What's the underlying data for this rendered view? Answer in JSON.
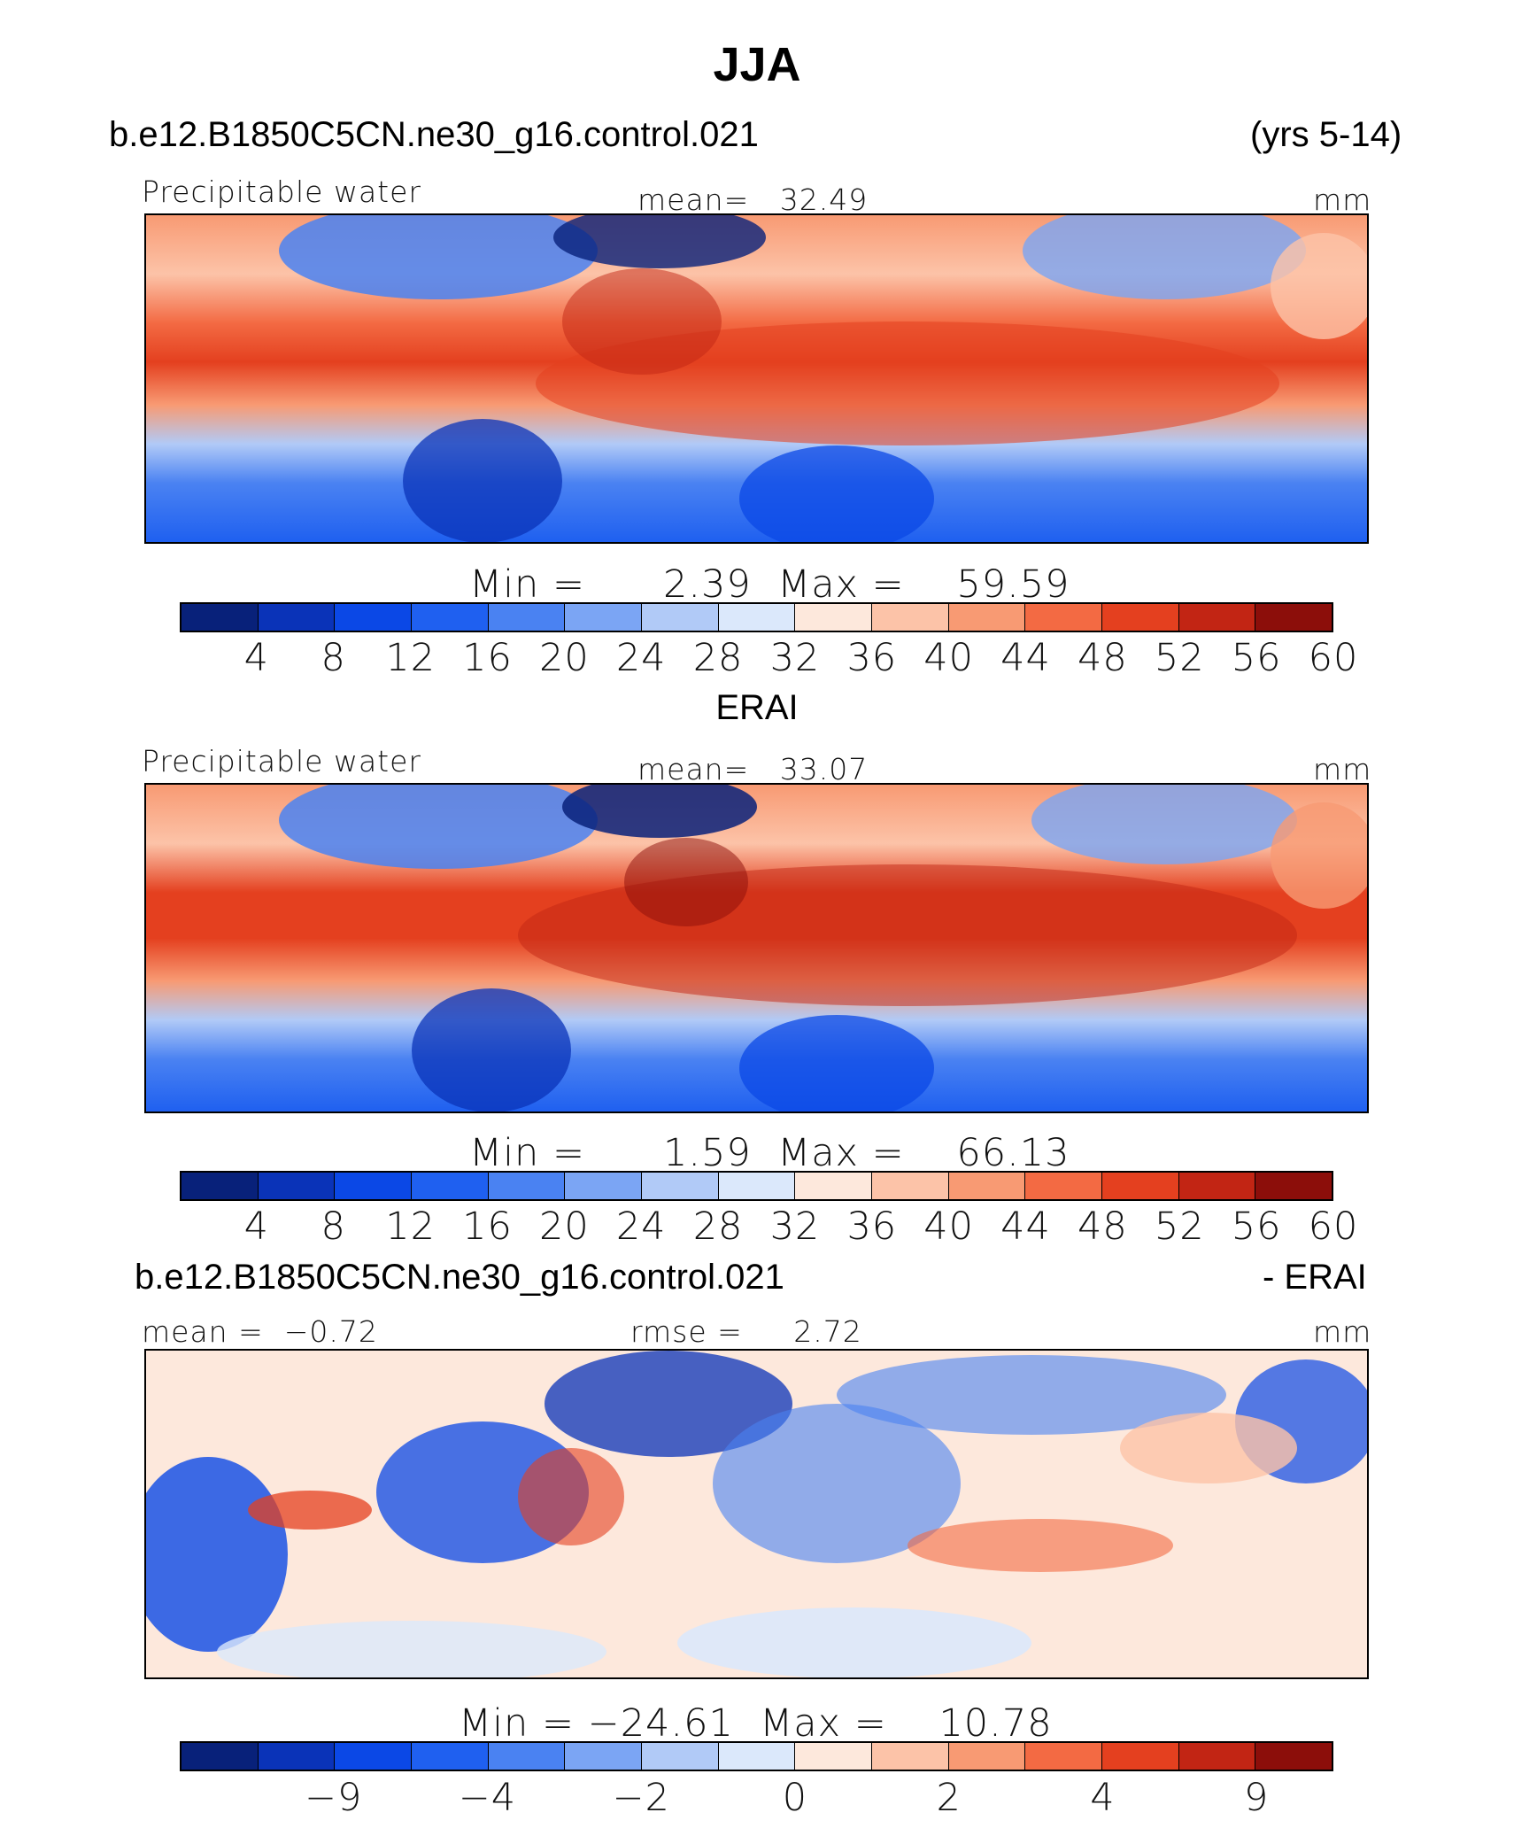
{
  "figure": {
    "title": "JJA",
    "case_name": "b.e12.B1850C5CN.ne30_g16.control.021",
    "years": "(yrs 5-14)"
  },
  "colors": {
    "palette": [
      "#08217a",
      "#0a33b8",
      "#0b48e6",
      "#1f60f0",
      "#4a82f2",
      "#7ba5f4",
      "#b1caf7",
      "#dbe8fb",
      "#fde8dc",
      "#fcc3a8",
      "#f89a73",
      "#f36a43",
      "#e4401f",
      "#c22514",
      "#8c0e0a"
    ]
  },
  "chart_data": [
    {
      "type": "heatmap",
      "panel": "model",
      "variable_label": "Precipitable water",
      "stat_left_label": "",
      "stat_mid_label": "mean=",
      "stat_mid_value": "32.49",
      "units": "mm",
      "min_label": "Min =",
      "min_value": "2.39",
      "max_label": "Max =",
      "max_value": "59.59",
      "colorbar_ticks": [
        "4",
        "8",
        "12",
        "16",
        "20",
        "24",
        "28",
        "32",
        "36",
        "40",
        "44",
        "48",
        "52",
        "56",
        "60"
      ],
      "x_range_deg_lon": [
        -20,
        280
      ],
      "y_range_deg_lat": [
        -40,
        40
      ]
    },
    {
      "type": "heatmap",
      "panel": "obs",
      "panel_title": "ERAI",
      "variable_label": "Precipitable water",
      "stat_mid_label": "mean=",
      "stat_mid_value": "33.07",
      "units": "mm",
      "min_label": "Min =",
      "min_value": "1.59",
      "max_label": "Max =",
      "max_value": "66.13",
      "colorbar_ticks": [
        "4",
        "8",
        "12",
        "16",
        "20",
        "24",
        "28",
        "32",
        "36",
        "40",
        "44",
        "48",
        "52",
        "56",
        "60"
      ],
      "x_range_deg_lon": [
        -20,
        280
      ],
      "y_range_deg_lat": [
        -40,
        40
      ]
    },
    {
      "type": "heatmap",
      "panel": "difference",
      "panel_title_left": "b.e12.B1850C5CN.ne30_g16.control.021",
      "panel_title_right": "- ERAI",
      "stat_left_label": "mean =",
      "stat_left_value": "−0.72",
      "stat_mid_label": "rmse =",
      "stat_mid_value": "2.72",
      "units": "mm",
      "min_label": "Min =",
      "min_value": "−24.61",
      "max_label": "Max =",
      "max_value": "10.78",
      "colorbar_ticks": [
        "−9",
        "−4",
        "−2",
        "0",
        "2",
        "4",
        "9"
      ],
      "x_range_deg_lon": [
        -20,
        280
      ],
      "y_range_deg_lat": [
        -40,
        40
      ]
    }
  ]
}
